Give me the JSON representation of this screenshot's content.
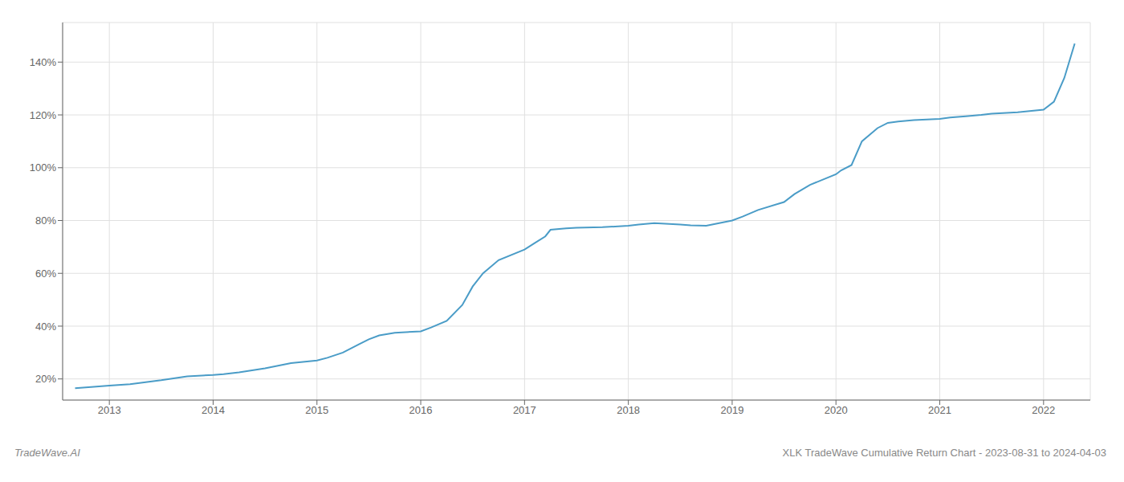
{
  "chart_data": {
    "type": "line",
    "title": "XLK TradeWave Cumulative Return Chart - 2023-08-31 to 2024-04-03",
    "annotations": [
      "TradeWave.AI"
    ],
    "color": "#4a9cc7",
    "grid": true,
    "xlim": [
      2012.55,
      2022.45
    ],
    "xticks": [
      2013,
      2014,
      2015,
      2016,
      2017,
      2018,
      2019,
      2020,
      2021,
      2022
    ],
    "ylim": [
      12,
      155
    ],
    "yticks": [
      {
        "value": 20,
        "label": "20%"
      },
      {
        "value": 40,
        "label": "40%"
      },
      {
        "value": 60,
        "label": "60%"
      },
      {
        "value": 80,
        "label": "80%"
      },
      {
        "value": 100,
        "label": "100%"
      },
      {
        "value": 120,
        "label": "120%"
      },
      {
        "value": 140,
        "label": "140%"
      }
    ],
    "x": [
      2012.67,
      2012.85,
      2013.0,
      2013.2,
      2013.5,
      2013.75,
      2014.0,
      2014.1,
      2014.25,
      2014.5,
      2014.75,
      2015.0,
      2015.1,
      2015.25,
      2015.4,
      2015.5,
      2015.6,
      2015.75,
      2016.0,
      2016.1,
      2016.25,
      2016.4,
      2016.5,
      2016.6,
      2016.75,
      2017.0,
      2017.1,
      2017.2,
      2017.25,
      2017.4,
      2017.5,
      2017.75,
      2018.0,
      2018.1,
      2018.25,
      2018.5,
      2018.6,
      2018.75,
      2019.0,
      2019.1,
      2019.25,
      2019.5,
      2019.6,
      2019.75,
      2020.0,
      2020.05,
      2020.15,
      2020.25,
      2020.4,
      2020.5,
      2020.6,
      2020.75,
      2021.0,
      2021.1,
      2021.25,
      2021.4,
      2021.5,
      2021.75,
      2022.0,
      2022.1,
      2022.2,
      2022.3
    ],
    "values": [
      16.5,
      17.0,
      17.5,
      18.0,
      19.5,
      21.0,
      21.5,
      21.8,
      22.5,
      24.0,
      26.0,
      27.0,
      28.0,
      30.0,
      33.0,
      35.0,
      36.5,
      37.5,
      38.0,
      39.5,
      42.0,
      48.0,
      55.0,
      60.0,
      65.0,
      69.0,
      71.5,
      74.0,
      76.5,
      77.0,
      77.3,
      77.5,
      78.0,
      78.5,
      79.0,
      78.5,
      78.2,
      78.0,
      80.0,
      81.5,
      84.0,
      87.0,
      90.0,
      93.5,
      97.5,
      99.0,
      101.0,
      110.0,
      115.0,
      117.0,
      117.5,
      118.0,
      118.5,
      119.0,
      119.5,
      120.0,
      120.5,
      121.0,
      122.0,
      125.0,
      134.0,
      147.0
    ]
  }
}
